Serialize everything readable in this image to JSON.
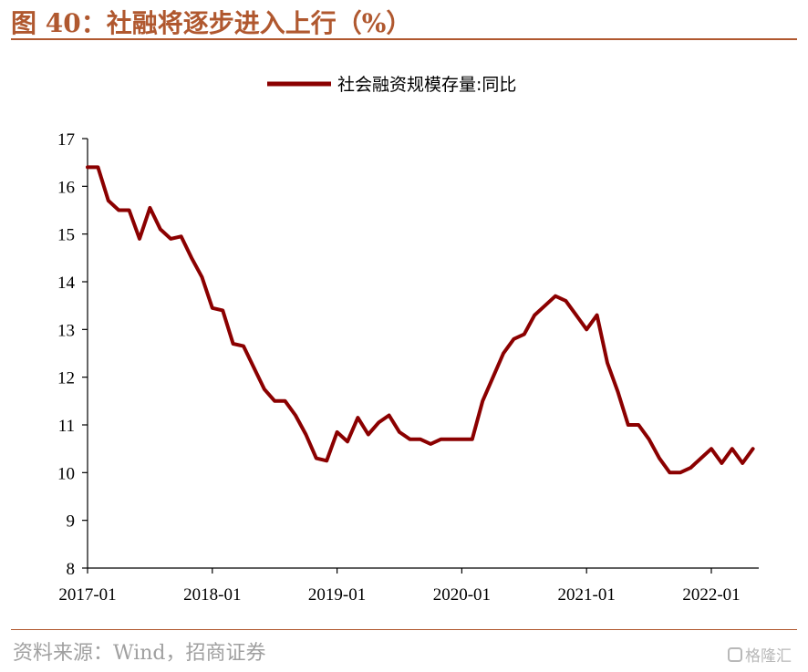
{
  "figure": {
    "title": "图 40：社融将逐步进入上行（%）",
    "source": "资料来源：Wind，招商证券",
    "watermark": "格隆汇"
  },
  "colors": {
    "accent": "#b0582f",
    "series": "#8b0000"
  },
  "chart_data": {
    "type": "line",
    "title": "",
    "xlabel": "",
    "ylabel": "",
    "ylim": [
      8,
      17
    ],
    "yticks": [
      8,
      9,
      10,
      11,
      12,
      13,
      14,
      15,
      16,
      17
    ],
    "xtick_labels": [
      "2017-01",
      "2018-01",
      "2019-01",
      "2020-01",
      "2021-01",
      "2022-01"
    ],
    "legend_position": "top-center",
    "grid": false,
    "series": [
      {
        "name": "社会融资规模存量:同比",
        "color": "#8b0000",
        "x": [
          "2017-01",
          "2017-02",
          "2017-03",
          "2017-04",
          "2017-05",
          "2017-06",
          "2017-07",
          "2017-08",
          "2017-09",
          "2017-10",
          "2017-11",
          "2017-12",
          "2018-01",
          "2018-02",
          "2018-03",
          "2018-04",
          "2018-05",
          "2018-06",
          "2018-07",
          "2018-08",
          "2018-09",
          "2018-10",
          "2018-11",
          "2018-12",
          "2019-01",
          "2019-02",
          "2019-03",
          "2019-04",
          "2019-05",
          "2019-06",
          "2019-07",
          "2019-08",
          "2019-09",
          "2019-10",
          "2019-11",
          "2019-12",
          "2020-01",
          "2020-02",
          "2020-03",
          "2020-04",
          "2020-05",
          "2020-06",
          "2020-07",
          "2020-08",
          "2020-09",
          "2020-10",
          "2020-11",
          "2020-12",
          "2021-01",
          "2021-02",
          "2021-03",
          "2021-04",
          "2021-05",
          "2021-06",
          "2021-07",
          "2021-08",
          "2021-09",
          "2021-10",
          "2021-11",
          "2021-12",
          "2022-01",
          "2022-02",
          "2022-03",
          "2022-04",
          "2022-05"
        ],
        "values": [
          16.4,
          16.4,
          15.7,
          15.5,
          15.5,
          14.9,
          15.55,
          15.1,
          14.9,
          14.95,
          14.5,
          14.1,
          13.45,
          13.4,
          12.7,
          12.65,
          12.2,
          11.75,
          11.5,
          11.5,
          11.2,
          10.8,
          10.3,
          10.25,
          10.85,
          10.65,
          11.15,
          10.8,
          11.05,
          11.2,
          10.85,
          10.7,
          10.7,
          10.6,
          10.7,
          10.7,
          10.7,
          10.7,
          11.5,
          12.0,
          12.5,
          12.8,
          12.9,
          13.3,
          13.5,
          13.7,
          13.6,
          13.3,
          13.0,
          13.3,
          12.3,
          11.7,
          11.0,
          11.0,
          10.7,
          10.3,
          10.0,
          10.0,
          10.1,
          10.3,
          10.5,
          10.2,
          10.5,
          10.2,
          10.5
        ]
      }
    ]
  }
}
